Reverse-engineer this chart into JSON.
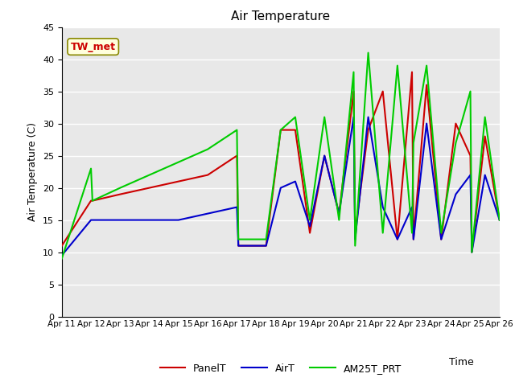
{
  "title": "Air Temperature",
  "xlabel": "Time",
  "ylabel": "Air Temperature (C)",
  "ylim": [
    0,
    45
  ],
  "yticks": [
    0,
    5,
    10,
    15,
    20,
    25,
    30,
    35,
    40,
    45
  ],
  "annotation_text": "TW_met",
  "annotation_color": "#cc0000",
  "annotation_bg": "#ffffdd",
  "annotation_border": "#888800",
  "bg_color": "#e8e8e8",
  "grid_color": "white",
  "x_labels": [
    "Apr 11",
    "Apr 12",
    "Apr 13",
    "Apr 14",
    "Apr 15",
    "Apr 16",
    "Apr 17",
    "Apr 18",
    "Apr 19",
    "Apr 20",
    "Apr 21",
    "Apr 22",
    "Apr 23",
    "Apr 24",
    "Apr 25",
    "Apr 26"
  ],
  "PanelT_x": [
    0,
    1,
    1.05,
    2,
    3,
    4,
    5,
    6,
    6.05,
    7,
    7.5,
    8,
    8.5,
    9,
    9.5,
    10,
    10.05,
    10.5,
    11,
    11.5,
    12,
    12.05,
    12.5,
    13,
    13.5,
    14,
    14.05,
    14.5,
    15
  ],
  "PanelT_y": [
    11,
    18,
    18,
    19,
    20,
    21,
    22,
    25,
    11,
    11,
    29,
    29,
    13,
    25,
    16,
    35,
    13,
    29,
    35,
    12,
    38,
    12,
    36,
    12,
    30,
    25,
    10,
    28,
    15
  ],
  "AirT_x": [
    0,
    1,
    1.05,
    2,
    3,
    4,
    5,
    6,
    6.05,
    7,
    7.5,
    8,
    8.5,
    9,
    9.5,
    10,
    10.05,
    10.5,
    11,
    11.5,
    12,
    12.05,
    12.5,
    13,
    13.5,
    14,
    14.05,
    14.5,
    15
  ],
  "AirT_y": [
    9.5,
    15,
    15,
    15,
    15,
    15,
    16,
    17,
    11,
    11,
    20,
    21,
    14,
    25,
    16,
    31,
    12,
    31,
    17,
    12,
    17,
    12,
    30,
    12,
    19,
    22,
    10,
    22,
    15
  ],
  "AM25T_x": [
    0,
    1,
    1.05,
    2,
    3,
    4,
    5,
    6,
    6.05,
    7,
    7.5,
    8,
    8.5,
    9,
    9.5,
    10,
    10.05,
    10.5,
    11,
    11.5,
    12,
    12.05,
    12.5,
    13,
    13.5,
    14,
    14.05,
    14.5,
    15
  ],
  "AM25T_y": [
    9,
    23,
    18,
    20,
    22,
    24,
    26,
    29,
    12,
    12,
    29,
    31,
    15,
    31,
    15,
    38,
    11,
    41,
    13,
    39,
    13,
    27,
    39,
    13,
    27,
    35,
    10,
    31,
    15
  ],
  "panel_color": "#cc0000",
  "air_color": "#0000cc",
  "am25_color": "#00cc00",
  "panel_label": "PanelT",
  "air_label": "AirT",
  "am25_label": "AM25T_PRT"
}
